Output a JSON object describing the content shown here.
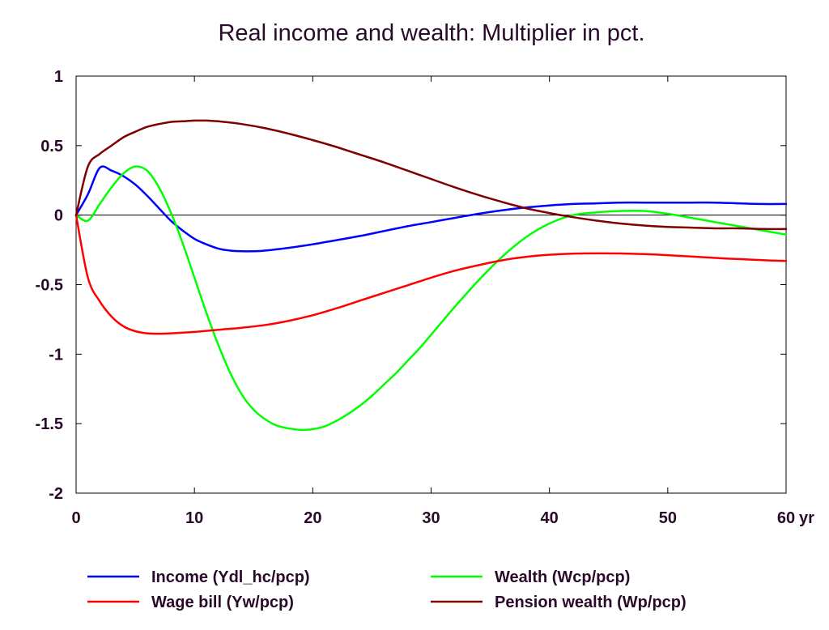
{
  "chart_data": {
    "type": "line",
    "title": "Real income and wealth: Multiplier in pct.",
    "xlabel": "",
    "ylabel": "",
    "x_unit_label": "yr",
    "xlim": [
      0,
      60
    ],
    "ylim": [
      -2,
      1
    ],
    "x_ticks": [
      0,
      10,
      20,
      30,
      40,
      50,
      60
    ],
    "x_tick_labels": [
      "0",
      "10",
      "20",
      "30",
      "40",
      "50",
      "60"
    ],
    "y_ticks": [
      1,
      0.5,
      0,
      -0.5,
      -1,
      -1.5,
      -2
    ],
    "y_tick_labels": [
      "1",
      "0.5",
      "0",
      "-0.5",
      "-1",
      "-1.5",
      "-2"
    ],
    "zero_line": true,
    "grid": false,
    "legend_position": "bottom",
    "series": [
      {
        "name": "Income (Ydl_hc/pcp)",
        "color": "#0000ff",
        "points": [
          [
            0,
            0
          ],
          [
            1,
            0.15
          ],
          [
            2,
            0.34
          ],
          [
            3,
            0.32
          ],
          [
            4,
            0.28
          ],
          [
            5,
            0.22
          ],
          [
            6,
            0.14
          ],
          [
            7,
            0.05
          ],
          [
            8,
            -0.04
          ],
          [
            9,
            -0.11
          ],
          [
            10,
            -0.17
          ],
          [
            11,
            -0.21
          ],
          [
            12,
            -0.24
          ],
          [
            13,
            -0.255
          ],
          [
            14,
            -0.26
          ],
          [
            15,
            -0.26
          ],
          [
            16,
            -0.255
          ],
          [
            18,
            -0.235
          ],
          [
            20,
            -0.21
          ],
          [
            22,
            -0.18
          ],
          [
            24,
            -0.15
          ],
          [
            26,
            -0.115
          ],
          [
            28,
            -0.08
          ],
          [
            30,
            -0.05
          ],
          [
            32,
            -0.02
          ],
          [
            34,
            0.01
          ],
          [
            36,
            0.035
          ],
          [
            38,
            0.055
          ],
          [
            40,
            0.07
          ],
          [
            42,
            0.08
          ],
          [
            44,
            0.085
          ],
          [
            46,
            0.09
          ],
          [
            48,
            0.09
          ],
          [
            50,
            0.09
          ],
          [
            52,
            0.09
          ],
          [
            54,
            0.09
          ],
          [
            56,
            0.085
          ],
          [
            58,
            0.08
          ],
          [
            60,
            0.08
          ]
        ]
      },
      {
        "name": "Wealth (Wcp/pcp)",
        "color": "#00ff00",
        "points": [
          [
            0,
            0
          ],
          [
            1,
            -0.04
          ],
          [
            2,
            0.08
          ],
          [
            3,
            0.2
          ],
          [
            4,
            0.3
          ],
          [
            5,
            0.35
          ],
          [
            6,
            0.32
          ],
          [
            7,
            0.2
          ],
          [
            8,
            0.02
          ],
          [
            9,
            -0.2
          ],
          [
            10,
            -0.45
          ],
          [
            11,
            -0.7
          ],
          [
            12,
            -0.93
          ],
          [
            13,
            -1.13
          ],
          [
            14,
            -1.29
          ],
          [
            15,
            -1.4
          ],
          [
            16,
            -1.47
          ],
          [
            17,
            -1.515
          ],
          [
            18,
            -1.535
          ],
          [
            19,
            -1.545
          ],
          [
            20,
            -1.54
          ],
          [
            21,
            -1.52
          ],
          [
            22,
            -1.48
          ],
          [
            23,
            -1.43
          ],
          [
            24,
            -1.37
          ],
          [
            25,
            -1.3
          ],
          [
            26,
            -1.22
          ],
          [
            27,
            -1.14
          ],
          [
            28,
            -1.05
          ],
          [
            29,
            -0.96
          ],
          [
            30,
            -0.86
          ],
          [
            32,
            -0.66
          ],
          [
            34,
            -0.47
          ],
          [
            36,
            -0.3
          ],
          [
            38,
            -0.16
          ],
          [
            40,
            -0.06
          ],
          [
            42,
            0.0
          ],
          [
            44,
            0.02
          ],
          [
            46,
            0.03
          ],
          [
            48,
            0.03
          ],
          [
            50,
            0.01
          ],
          [
            52,
            -0.02
          ],
          [
            54,
            -0.05
          ],
          [
            56,
            -0.08
          ],
          [
            58,
            -0.11
          ],
          [
            60,
            -0.14
          ]
        ]
      },
      {
        "name": "Wage bill (Yw/pcp)",
        "color": "#ff0000",
        "points": [
          [
            0,
            0
          ],
          [
            1,
            -0.45
          ],
          [
            2,
            -0.62
          ],
          [
            3,
            -0.73
          ],
          [
            4,
            -0.8
          ],
          [
            5,
            -0.835
          ],
          [
            6,
            -0.85
          ],
          [
            7,
            -0.853
          ],
          [
            8,
            -0.85
          ],
          [
            10,
            -0.84
          ],
          [
            12,
            -0.825
          ],
          [
            14,
            -0.81
          ],
          [
            16,
            -0.79
          ],
          [
            18,
            -0.76
          ],
          [
            20,
            -0.72
          ],
          [
            22,
            -0.67
          ],
          [
            24,
            -0.615
          ],
          [
            26,
            -0.56
          ],
          [
            28,
            -0.505
          ],
          [
            30,
            -0.45
          ],
          [
            32,
            -0.4
          ],
          [
            34,
            -0.36
          ],
          [
            36,
            -0.325
          ],
          [
            38,
            -0.3
          ],
          [
            40,
            -0.285
          ],
          [
            42,
            -0.277
          ],
          [
            44,
            -0.275
          ],
          [
            46,
            -0.276
          ],
          [
            48,
            -0.28
          ],
          [
            50,
            -0.288
          ],
          [
            52,
            -0.298
          ],
          [
            54,
            -0.308
          ],
          [
            56,
            -0.316
          ],
          [
            58,
            -0.324
          ],
          [
            60,
            -0.33
          ]
        ]
      },
      {
        "name": "Pension wealth (Wp/pcp)",
        "color": "#800000",
        "points": [
          [
            0,
            0
          ],
          [
            1,
            0.35
          ],
          [
            2,
            0.44
          ],
          [
            3,
            0.5
          ],
          [
            4,
            0.56
          ],
          [
            5,
            0.6
          ],
          [
            6,
            0.635
          ],
          [
            7,
            0.655
          ],
          [
            8,
            0.67
          ],
          [
            9,
            0.675
          ],
          [
            10,
            0.68
          ],
          [
            11,
            0.68
          ],
          [
            12,
            0.675
          ],
          [
            14,
            0.655
          ],
          [
            16,
            0.625
          ],
          [
            18,
            0.585
          ],
          [
            20,
            0.54
          ],
          [
            22,
            0.49
          ],
          [
            24,
            0.435
          ],
          [
            26,
            0.38
          ],
          [
            28,
            0.32
          ],
          [
            30,
            0.26
          ],
          [
            32,
            0.2
          ],
          [
            34,
            0.145
          ],
          [
            36,
            0.095
          ],
          [
            38,
            0.05
          ],
          [
            40,
            0.015
          ],
          [
            42,
            -0.015
          ],
          [
            44,
            -0.04
          ],
          [
            46,
            -0.06
          ],
          [
            48,
            -0.075
          ],
          [
            50,
            -0.085
          ],
          [
            52,
            -0.09
          ],
          [
            54,
            -0.095
          ],
          [
            56,
            -0.095
          ],
          [
            58,
            -0.1
          ],
          [
            60,
            -0.1
          ]
        ]
      }
    ]
  }
}
